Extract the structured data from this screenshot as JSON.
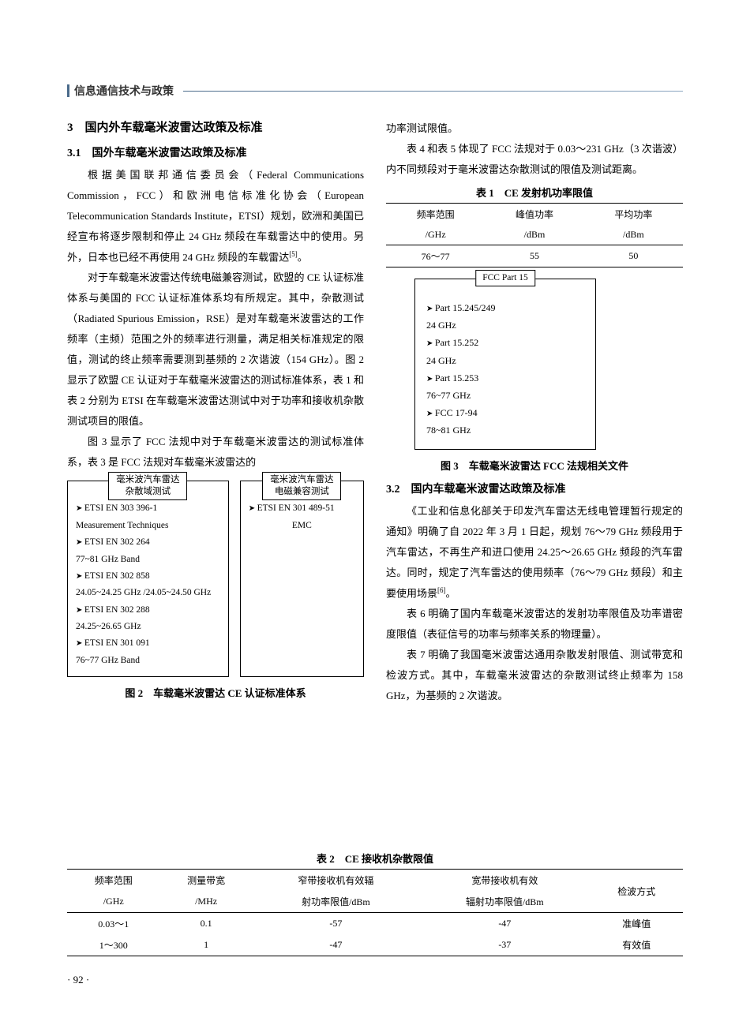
{
  "header": {
    "journal_title": "信息通信技术与政策"
  },
  "section3": {
    "heading": "3　国内外车载毫米波雷达政策及标准",
    "sub3_1": {
      "heading": "3.1　国外车载毫米波雷达政策及标准",
      "p1": "根据美国联邦通信委员会（Federal Communications Commission，FCC）和欧洲电信标准化协会（European Telecommunication Standards Institute，ETSI）规划，欧洲和美国已经宣布将逐步限制和停止 24 GHz 频段在车载雷达中的使用。另外，日本也已经不再使用 24 GHz 频段的车载雷达",
      "p1_ref": "[5]",
      "p1_end": "。",
      "p2": "对于车载毫米波雷达传统电磁兼容测试，欧盟的 CE 认证标准体系与美国的 FCC 认证标准体系均有所规定。其中，杂散测试（Radiated Spurious Emission，RSE）是对车载毫米波雷达的工作频率（主频）范围之外的频率进行测量，满足相关标准规定的限值，测试的终止频率需要测到基频的 2 次谐波（154 GHz）。图 2 显示了欧盟 CE 认证对于车载毫米波雷达的测试标准体系，表 1 和表 2 分别为 ETSI 在车载毫米波雷达测试中对于功率和接收机杂散测试项目的限值。",
      "p3": "图 3 显示了 FCC 法规中对于车载毫米波雷达的测试标准体系，表 3 是 FCC 法规对车载毫米波雷达的",
      "right_cont": "功率测试限值。",
      "right_p2": "表 4 和表 5 体现了 FCC 法规对于 0.03～231 GHz（3 次谐波）内不同频段对于毫米波雷达杂散测试的限值及测试距离。"
    },
    "sub3_2": {
      "heading": "3.2　国内车载毫米波雷达政策及标准",
      "p1": "《工业和信息化部关于印发汽车雷达无线电管理暂行规定的通知》明确了自 2022 年 3 月 1 日起，规划 76～79 GHz 频段用于汽车雷达，不再生产和进口使用 24.25～26.65 GHz 频段的汽车雷达。同时，规定了汽车雷达的使用频率（76～79 GHz 频段）和主要使用场景",
      "p1_ref": "[6]",
      "p1_end": "。",
      "p2": "表 6 明确了国内车载毫米波雷达的发射功率限值及功率谱密度限值（表征信号的功率与频率关系的物理量）。",
      "p3": "表 7 明确了我国毫米波雷达通用杂散发射限值、测试带宽和检波方式。其中，车载毫米波雷达的杂散测试终止频率为 158 GHz，为基频的 2 次谐波。"
    }
  },
  "fig2": {
    "left_title_l1": "毫米波汽车雷达",
    "left_title_l2": "杂散域测试",
    "right_title_l1": "毫米波汽车雷达",
    "right_title_l2": "电磁兼容测试",
    "left_items": [
      "ETSI EN 303 396-1",
      "Measurement Techniques",
      "ETSI EN 302 264",
      "77~81 GHz Band",
      "ETSI EN 302 858",
      "24.05~24.25 GHz /24.05~24.50 GHz",
      "ETSI EN 302 288",
      "24.25~26.65 GHz",
      "ETSI EN 301 091",
      "76~77 GHz Band"
    ],
    "right_items": [
      "ETSI EN 301 489-51",
      "EMC"
    ],
    "caption": "图 2　车载毫米波雷达 CE 认证标准体系"
  },
  "fig3": {
    "title": "FCC Part 15",
    "items": [
      "Part 15.245/249",
      "24 GHz",
      "Part 15.252",
      "24 GHz",
      "Part 15.253",
      "76~77 GHz",
      "FCC 17-94",
      "78~81 GHz"
    ],
    "caption": "图 3　车载毫米波雷达 FCC 法规相关文件"
  },
  "table1": {
    "title": "表 1　CE 发射机功率限值",
    "h1": "频率范围",
    "h1u": "/GHz",
    "h2": "峰值功率",
    "h2u": "/dBm",
    "h3": "平均功率",
    "h3u": "/dBm",
    "r1c1": "76～77",
    "r1c2": "55",
    "r1c3": "50"
  },
  "table2": {
    "title": "表 2　CE 接收机杂散限值",
    "h1": "频率范围",
    "h1u": "/GHz",
    "h2": "测量带宽",
    "h2u": "/MHz",
    "h3a": "窄带接收机有效辐",
    "h3b": "射功率限值/dBm",
    "h4a": "宽带接收机有效",
    "h4b": "辐射功率限值/dBm",
    "h5": "检波方式",
    "r1": {
      "c1": "0.03～1",
      "c2": "0.1",
      "c3": "-57",
      "c4": "-47",
      "c5": "准峰值"
    },
    "r2": {
      "c1": "1～300",
      "c2": "1",
      "c3": "-47",
      "c4": "-37",
      "c5": "有效值"
    }
  },
  "page_number": "· 92 ·"
}
